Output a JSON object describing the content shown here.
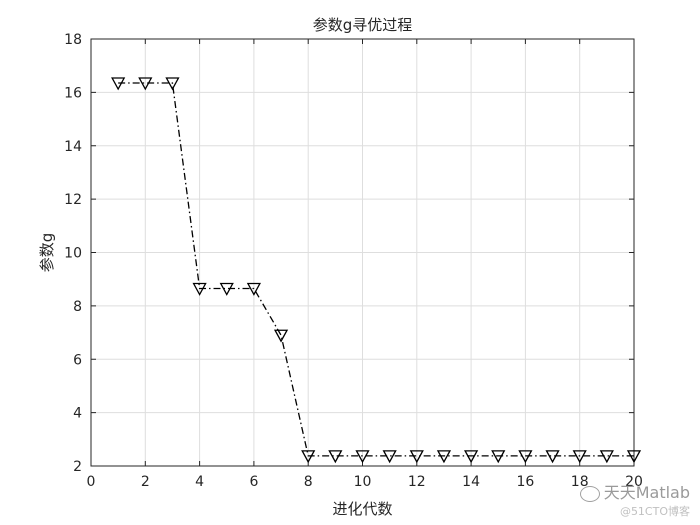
{
  "chart_data": {
    "type": "line",
    "title": "参数g寻优过程",
    "xlabel": "进化代数",
    "ylabel": "参数g",
    "xlim": [
      0,
      20
    ],
    "ylim": [
      2,
      18
    ],
    "xticks": [
      0,
      2,
      4,
      6,
      8,
      10,
      12,
      14,
      16,
      18,
      20
    ],
    "yticks": [
      2,
      4,
      6,
      8,
      10,
      12,
      14,
      16,
      18
    ],
    "grid": true,
    "line_style": "dash-dot",
    "marker": "triangle-down",
    "line_color": "#000000",
    "series": [
      {
        "x": [
          1,
          2,
          3,
          4,
          5,
          6,
          7,
          8,
          9,
          10,
          11,
          12,
          13,
          14,
          15,
          16,
          17,
          18,
          19,
          20
        ],
        "values": [
          16.35,
          16.35,
          16.35,
          8.65,
          8.65,
          8.65,
          6.9,
          2.38,
          2.38,
          2.38,
          2.38,
          2.38,
          2.38,
          2.38,
          2.38,
          2.38,
          2.38,
          2.38,
          2.38,
          2.38
        ]
      }
    ]
  },
  "watermark": {
    "main": "天天Matlab",
    "sub": "@51CTO博客",
    "icon": "wechat-icon"
  }
}
